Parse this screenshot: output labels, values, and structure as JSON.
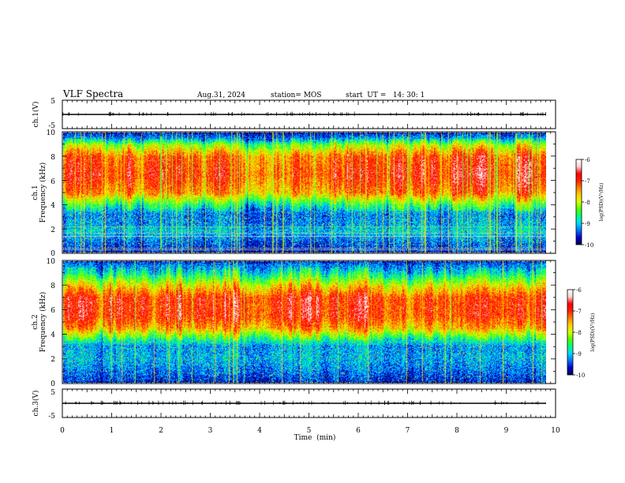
{
  "header": {
    "title": "VLF Spectra",
    "date": "Aug.31, 2024",
    "station": "station= MOS",
    "start": "start  UT =   14: 30: 1"
  },
  "colors": {
    "scale": [
      "#000050",
      "#0000c8",
      "#0070ff",
      "#00d8ff",
      "#00ff80",
      "#50ff00",
      "#d8ff00",
      "#ffd000",
      "#ff8000",
      "#ff2000",
      "#ff0000",
      "#ffd0d0",
      "#ffffff"
    ]
  },
  "chart_data": [
    {
      "type": "line",
      "name": "ch1-voltage",
      "ylabel": "ch.1(V)",
      "ylim": [
        -5,
        5
      ],
      "yticks": [
        "5",
        "-5"
      ],
      "x": [
        0,
        9.8
      ],
      "values": [
        0,
        0
      ]
    },
    {
      "type": "heatmap",
      "name": "ch1-spectrogram",
      "ylabel": "ch.1\nFrequency (kHz)",
      "ylim": [
        0,
        10
      ],
      "yticks": [
        "0",
        "2",
        "4",
        "6",
        "8",
        "10"
      ],
      "xlim": [
        0,
        10
      ],
      "data_extent_min": 9.8,
      "band_profile_khz": [
        [
          0,
          -9.6
        ],
        [
          0.8,
          -9.4
        ],
        [
          1.8,
          -9.0
        ],
        [
          2.2,
          -9.2
        ],
        [
          3.2,
          -9.3
        ],
        [
          4.0,
          -8.6
        ],
        [
          5.0,
          -7.4
        ],
        [
          6.5,
          -7.0
        ],
        [
          8.0,
          -7.2
        ],
        [
          9.0,
          -8.2
        ],
        [
          9.6,
          -9.3
        ],
        [
          10,
          -9.6
        ]
      ],
      "colorbar": {
        "label": "log(PSD)(V²/Hz)",
        "range": [
          -10,
          -6
        ],
        "ticks": [
          "-6",
          "-7",
          "-8",
          "-9",
          "-10"
        ]
      }
    },
    {
      "type": "heatmap",
      "name": "ch2-spectrogram",
      "ylabel": "ch.2\nFrequency (kHz)",
      "ylim": [
        0,
        10
      ],
      "yticks": [
        "0",
        "2",
        "4",
        "6",
        "8",
        "10"
      ],
      "xlim": [
        0,
        10
      ],
      "data_extent_min": 9.8,
      "band_profile_khz": [
        [
          0,
          -9.6
        ],
        [
          1.0,
          -9.3
        ],
        [
          2.0,
          -9.1
        ],
        [
          3.0,
          -9.2
        ],
        [
          3.6,
          -8.6
        ],
        [
          4.5,
          -7.5
        ],
        [
          5.5,
          -7.0
        ],
        [
          7.0,
          -7.0
        ],
        [
          8.0,
          -7.8
        ],
        [
          9.0,
          -8.8
        ],
        [
          10,
          -9.5
        ]
      ],
      "colorbar": {
        "label": "log(PSD)(V²/Hz)",
        "range": [
          -10,
          -6
        ],
        "ticks": [
          "-6",
          "-7",
          "-8",
          "-9",
          "-10"
        ]
      }
    },
    {
      "type": "line",
      "name": "ch3-voltage",
      "ylabel": "ch.3(V)",
      "ylim": [
        -5,
        5
      ],
      "yticks": [
        "5",
        "-5"
      ],
      "x": [
        0,
        9.8
      ],
      "values": [
        0,
        0
      ]
    }
  ],
  "xaxis": {
    "label": "Time  (min)",
    "ticks": [
      "0",
      "1",
      "2",
      "3",
      "4",
      "5",
      "6",
      "7",
      "8",
      "9",
      "10"
    ]
  }
}
